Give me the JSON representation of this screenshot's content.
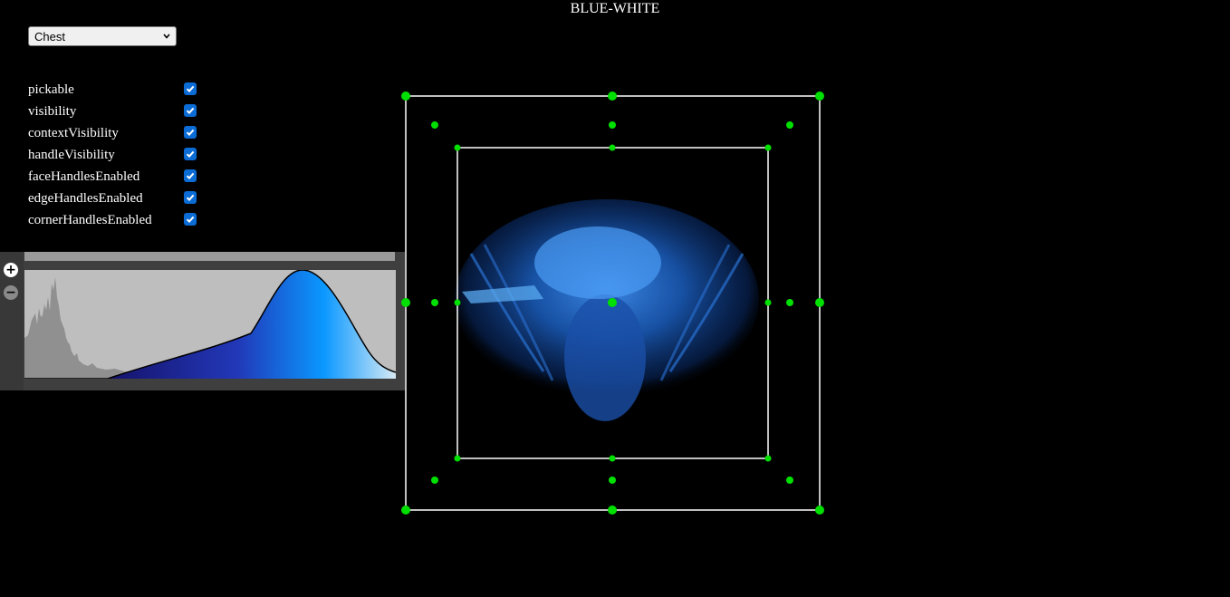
{
  "title": "BLUE-WHITE",
  "preset": {
    "selected": "Chest"
  },
  "properties": [
    {
      "label": "pickable",
      "checked": true
    },
    {
      "label": "visibility",
      "checked": true
    },
    {
      "label": "contextVisibility",
      "checked": true
    },
    {
      "label": "handleVisibility",
      "checked": true
    },
    {
      "label": "faceHandlesEnabled",
      "checked": true
    },
    {
      "label": "edgeHandlesEnabled",
      "checked": true
    },
    {
      "label": "cornerHandlesEnabled",
      "checked": true
    }
  ],
  "transfer_function": {
    "add_label": "+",
    "remove_label": "−",
    "gradient_colors": [
      "#1a1a6e",
      "#1f4fc9",
      "#0a96ff",
      "#cfe6f2"
    ]
  },
  "colors": {
    "handle": "#00e000",
    "box": "#ffffff",
    "checkbox": "#0b6cd6",
    "volume": "#1f6fd6"
  }
}
